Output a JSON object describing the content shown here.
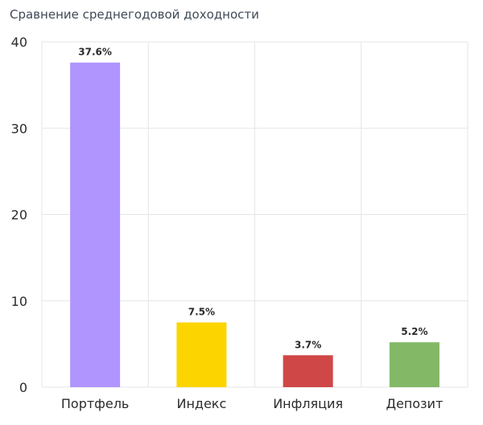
{
  "chart_data": {
    "type": "bar",
    "title": "Сравнение среднегодовой доходности",
    "categories": [
      "Портфель",
      "Индекс",
      "Инфляция",
      "Депозит"
    ],
    "values": [
      37.6,
      7.5,
      3.7,
      5.2
    ],
    "data_labels": [
      "37.6%",
      "7.5%",
      "3.7%",
      "5.2%"
    ],
    "colors": [
      "#b095fe",
      "#fcd500",
      "#cf4747",
      "#82b866"
    ],
    "ylim": [
      0,
      40
    ],
    "yticks": [
      0,
      10,
      20,
      30,
      40
    ],
    "grid": true,
    "legend": "none"
  }
}
